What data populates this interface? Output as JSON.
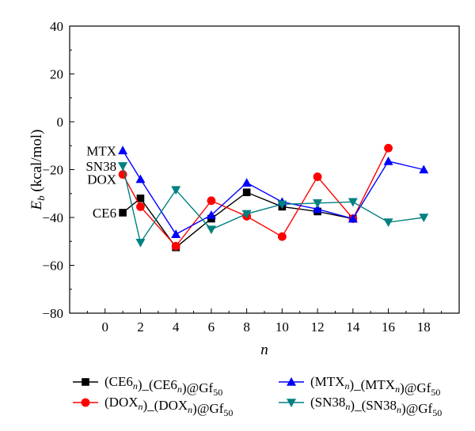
{
  "chart_data": {
    "type": "line",
    "title": "",
    "xlabel": "n",
    "ylabel": "E_b (kcal/mol)",
    "ylabel_main": "E",
    "ylabel_sub": "b",
    "ylabel_rest": " (kcal/mol)",
    "xlim": [
      -2,
      20
    ],
    "ylim": [
      -80,
      40
    ],
    "xticks": [
      0,
      2,
      4,
      6,
      8,
      10,
      12,
      14,
      16,
      18
    ],
    "yticks": [
      -80,
      -60,
      -40,
      -20,
      0,
      20,
      40
    ],
    "grid": false,
    "legend_position": "bottom",
    "series": [
      {
        "name": "(CE6n)_(CE6n)@Gf50",
        "name_parts": [
          [
            "(CE6",
            ""
          ],
          [
            "n",
            "sub"
          ],
          [
            ")_(CE6",
            ""
          ],
          [
            "n",
            "sub"
          ],
          [
            ")@Gf",
            ""
          ],
          [
            "50",
            "sub"
          ]
        ],
        "color": "#000000",
        "marker": "square",
        "x": [
          1,
          2,
          4,
          6,
          8,
          10,
          12,
          14
        ],
        "y": [
          -38,
          -32,
          -52.5,
          -40.5,
          -29.5,
          -35.5,
          -37.5,
          -40.5
        ]
      },
      {
        "name": "(DOXn)_(DOXn)@Gf50",
        "name_parts": [
          [
            "(DOX",
            ""
          ],
          [
            "n",
            "sub"
          ],
          [
            ")_(DOX",
            ""
          ],
          [
            "n",
            "sub"
          ],
          [
            ")@Gf",
            ""
          ],
          [
            "50",
            "sub"
          ]
        ],
        "color": "#ff0000",
        "marker": "circle",
        "x": [
          1,
          2,
          4,
          6,
          8,
          10,
          12,
          14,
          16
        ],
        "y": [
          -22,
          -35.5,
          -52,
          -33,
          -39.5,
          -48,
          -23,
          -40.5,
          -11
        ]
      },
      {
        "name": "(MTXn)_(MTXn)@Gf50",
        "name_parts": [
          [
            "(MTX",
            ""
          ],
          [
            "n",
            "sub"
          ],
          [
            ")_(MTX",
            ""
          ],
          [
            "n",
            "sub"
          ],
          [
            ")@Gf",
            ""
          ],
          [
            "50",
            "sub"
          ]
        ],
        "color": "#0000ff",
        "marker": "triangle-up",
        "x": [
          1,
          2,
          4,
          6,
          8,
          10,
          12,
          14,
          16,
          18
        ],
        "y": [
          -12,
          -24,
          -47,
          -39,
          -25.5,
          -33.5,
          -36.5,
          -40.5,
          -16.5,
          -20
        ]
      },
      {
        "name": "(SN38n)_(SN38n)@Gf50",
        "name_parts": [
          [
            "(SN38",
            ""
          ],
          [
            "n",
            "sub"
          ],
          [
            ")_(SN38",
            ""
          ],
          [
            "n",
            "sub"
          ],
          [
            ")@Gf",
            ""
          ],
          [
            "50",
            "sub"
          ]
        ],
        "color": "#008080",
        "marker": "triangle-down",
        "x": [
          1,
          2,
          4,
          6,
          8,
          10,
          12,
          14,
          16,
          18
        ],
        "y": [
          -18.5,
          -50.5,
          -28.5,
          -45,
          -38.5,
          -34.5,
          -34,
          -33.5,
          -42,
          -40
        ]
      }
    ],
    "annotations": [
      {
        "text": "MTX",
        "x": 1,
        "y": -12
      },
      {
        "text": "SN38",
        "x": 1,
        "y": -18.5
      },
      {
        "text": "DOX",
        "x": 1,
        "y": -24
      },
      {
        "text": "CE6",
        "x": 1,
        "y": -38
      }
    ]
  }
}
